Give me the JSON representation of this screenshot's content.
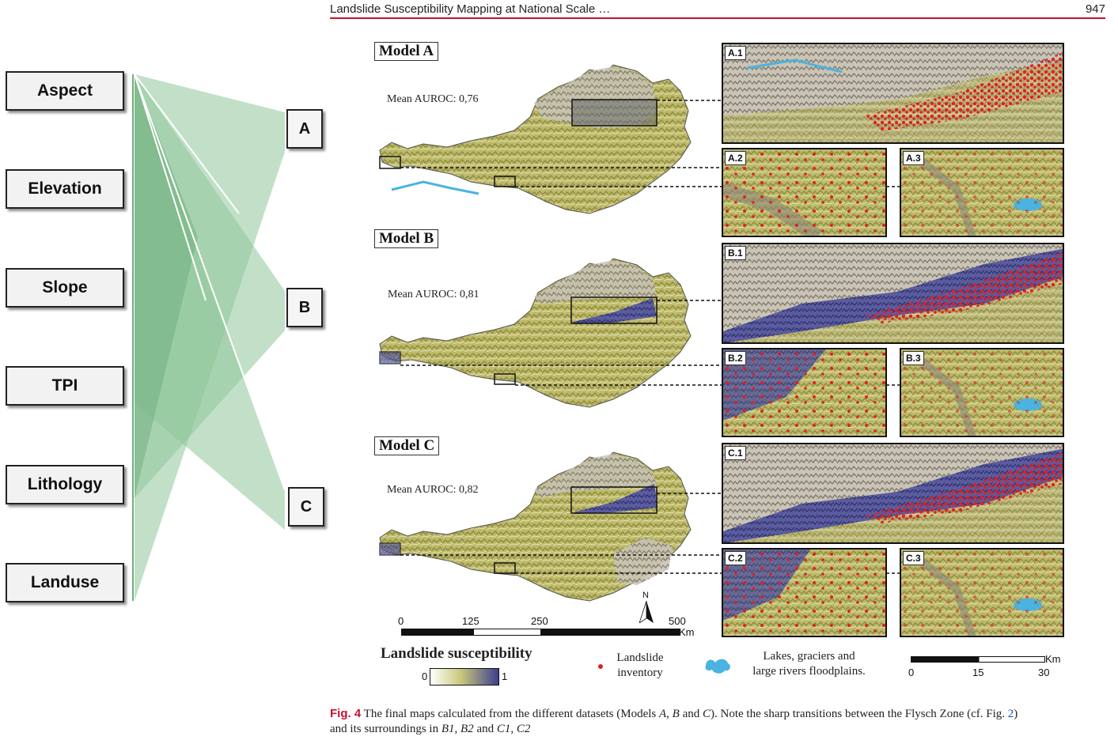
{
  "header": {
    "title": "Landslide Susceptibility Mapping at National Scale …",
    "page": "947"
  },
  "factors": [
    "Aspect",
    "Elevation",
    "Slope",
    "TPI",
    "Lithology",
    "Landuse"
  ],
  "models": [
    "A",
    "B",
    "C"
  ],
  "figure": {
    "model_labels": [
      "Model A",
      "Model B",
      "Model C"
    ],
    "auroc": [
      "Mean AUROC: 0,76",
      "Mean AUROC: 0,81",
      "Mean AUROC: 0,82"
    ],
    "panels": [
      "A.1",
      "A.2",
      "A.3",
      "B.1",
      "B.2",
      "B.3",
      "C.1",
      "C.2",
      "C.3"
    ],
    "scale_main": {
      "ticks": [
        "0",
        "125",
        "250",
        "500"
      ],
      "unit": "Km",
      "north": "N"
    },
    "scale_small": {
      "ticks": [
        "0",
        "15",
        "30"
      ],
      "unit": "Km"
    },
    "legend": {
      "title": "Landslide susceptibility",
      "min": "0",
      "max": "1",
      "inventory": "Landslide inventory",
      "lakes_line1": "Lakes, graciers and",
      "lakes_line2": "large rivers floodplains."
    }
  },
  "caption": {
    "fig": "Fig. 4",
    "text1": " The final maps calculated from the different datasets (Models ",
    "a": "A",
    "sep1": ", ",
    "b": "B",
    "sep2": " and ",
    "c": "C",
    "text2": "). Note the sharp transitions between the Flysch Zone (cf. Fig. ",
    "figref": "2",
    "text3": ")",
    "line2a": "and its surroundings in ",
    "b1": "B1",
    "sep3": ", ",
    "b2": "B2",
    "sep4": " and ",
    "c1": "C1",
    "sep5": ", ",
    "c2": "C2"
  },
  "colors": {
    "accent": "#c8102e",
    "fan_green": "#7fb88a",
    "susc_high": "#3c3f8f",
    "susc_low": "#c9c77a",
    "inventory": "#e02020",
    "water": "#4ab3e0"
  }
}
